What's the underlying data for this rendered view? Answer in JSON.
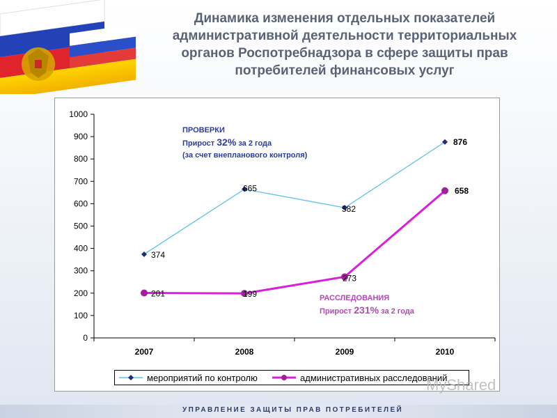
{
  "title_lines": [
    "Динамика изменения отдельных показателей",
    "административной деятельности территориальных",
    "органов Роспотребнадзора в сфере защиты прав",
    "потребителей финансовых услуг"
  ],
  "colors": {
    "checks_line": "#5cc3ea",
    "checks_marker": "#1f2c80",
    "investigations_line": "#d91fd9",
    "investigations_marker": "#a0229a",
    "checks_annotation": "#2a3d9e",
    "investigations_annotation": "#b04ab4",
    "title": "#5a6376"
  },
  "annotations": {
    "checks": {
      "heading": "ПРОВЕРКИ",
      "growth_prefix": "Прирост",
      "growth_value": "32%",
      "growth_suffix": "за 2 года",
      "note": "(за счет внепланового контроля)"
    },
    "investigations": {
      "heading": "РАССЛЕДОВАНИЯ",
      "growth_prefix": "Прирост",
      "growth_value": "231%",
      "growth_suffix": "за 2 года"
    }
  },
  "footer": "УПРАВЛЕНИЕ ЗАЩИТЫ ПРАВ ПОТРЕБИТЕЛЕЙ",
  "watermark": "MyShared",
  "chart_data": {
    "type": "line",
    "categories": [
      "2007",
      "2008",
      "2009",
      "2010"
    ],
    "series": [
      {
        "name": "мероприятий по контролю",
        "values": [
          374,
          665,
          582,
          876
        ],
        "labels": [
          "374",
          "665",
          "582",
          "876"
        ],
        "marker": "diamond"
      },
      {
        "name": "административных расследований",
        "values": [
          201,
          199,
          273,
          658
        ],
        "labels": [
          "201",
          "199",
          "273",
          "658"
        ],
        "marker": "circle"
      }
    ],
    "ylim": [
      0,
      1000
    ],
    "yticks": [
      "0",
      "100",
      "200",
      "300",
      "400",
      "500",
      "600",
      "700",
      "800",
      "900",
      "1000"
    ],
    "grid": false,
    "legend": "bottom"
  }
}
